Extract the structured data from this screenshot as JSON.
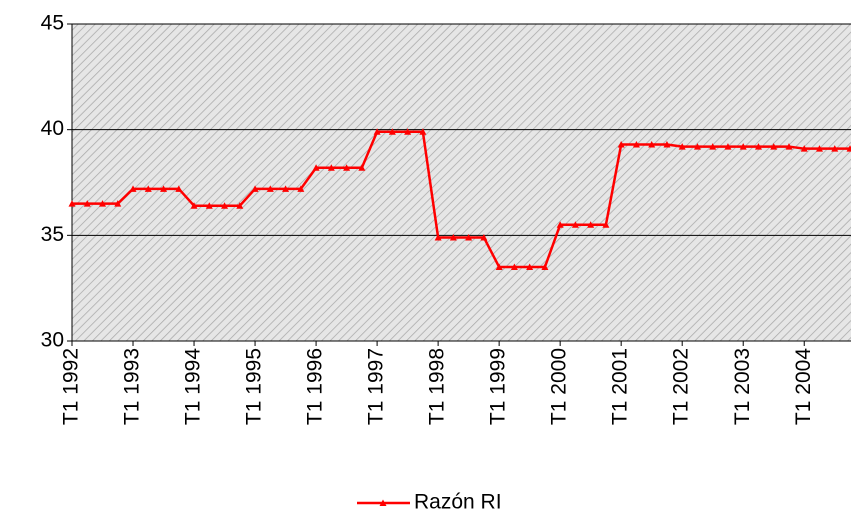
{
  "chart_data": {
    "type": "line",
    "categories": [
      "T1 1992",
      null,
      null,
      null,
      "T1 1993",
      null,
      null,
      null,
      "T1 1994",
      null,
      null,
      null,
      "T1 1995",
      null,
      null,
      null,
      "T1 1996",
      null,
      null,
      null,
      "T1 1997",
      null,
      null,
      null,
      "T1 1998",
      null,
      null,
      null,
      "T1 1999",
      null,
      null,
      null,
      "T1 2000",
      null,
      null,
      null,
      "T1 2001",
      null,
      null,
      null,
      "T1 2002",
      null,
      null,
      null,
      "T1 2003",
      null,
      null,
      null,
      "T1 2004",
      null,
      null,
      null
    ],
    "series": [
      {
        "name": "Razón RI",
        "color": "#ff0000",
        "values": [
          36.5,
          36.5,
          36.5,
          36.5,
          37.2,
          37.2,
          37.2,
          37.2,
          36.4,
          36.4,
          36.4,
          36.4,
          37.2,
          37.2,
          37.2,
          37.2,
          38.2,
          38.2,
          38.2,
          38.2,
          39.9,
          39.9,
          39.9,
          39.9,
          34.9,
          34.9,
          34.9,
          34.9,
          33.5,
          33.5,
          33.5,
          33.5,
          35.5,
          35.5,
          35.5,
          35.5,
          39.3,
          39.3,
          39.3,
          39.3,
          39.2,
          39.2,
          39.2,
          39.2,
          39.2,
          39.2,
          39.2,
          39.2,
          39.1,
          39.1,
          39.1,
          39.1
        ]
      }
    ],
    "ylim": [
      30,
      45
    ],
    "yticks": [
      30,
      35,
      40,
      45
    ],
    "grid": true,
    "legend": "bottom"
  }
}
